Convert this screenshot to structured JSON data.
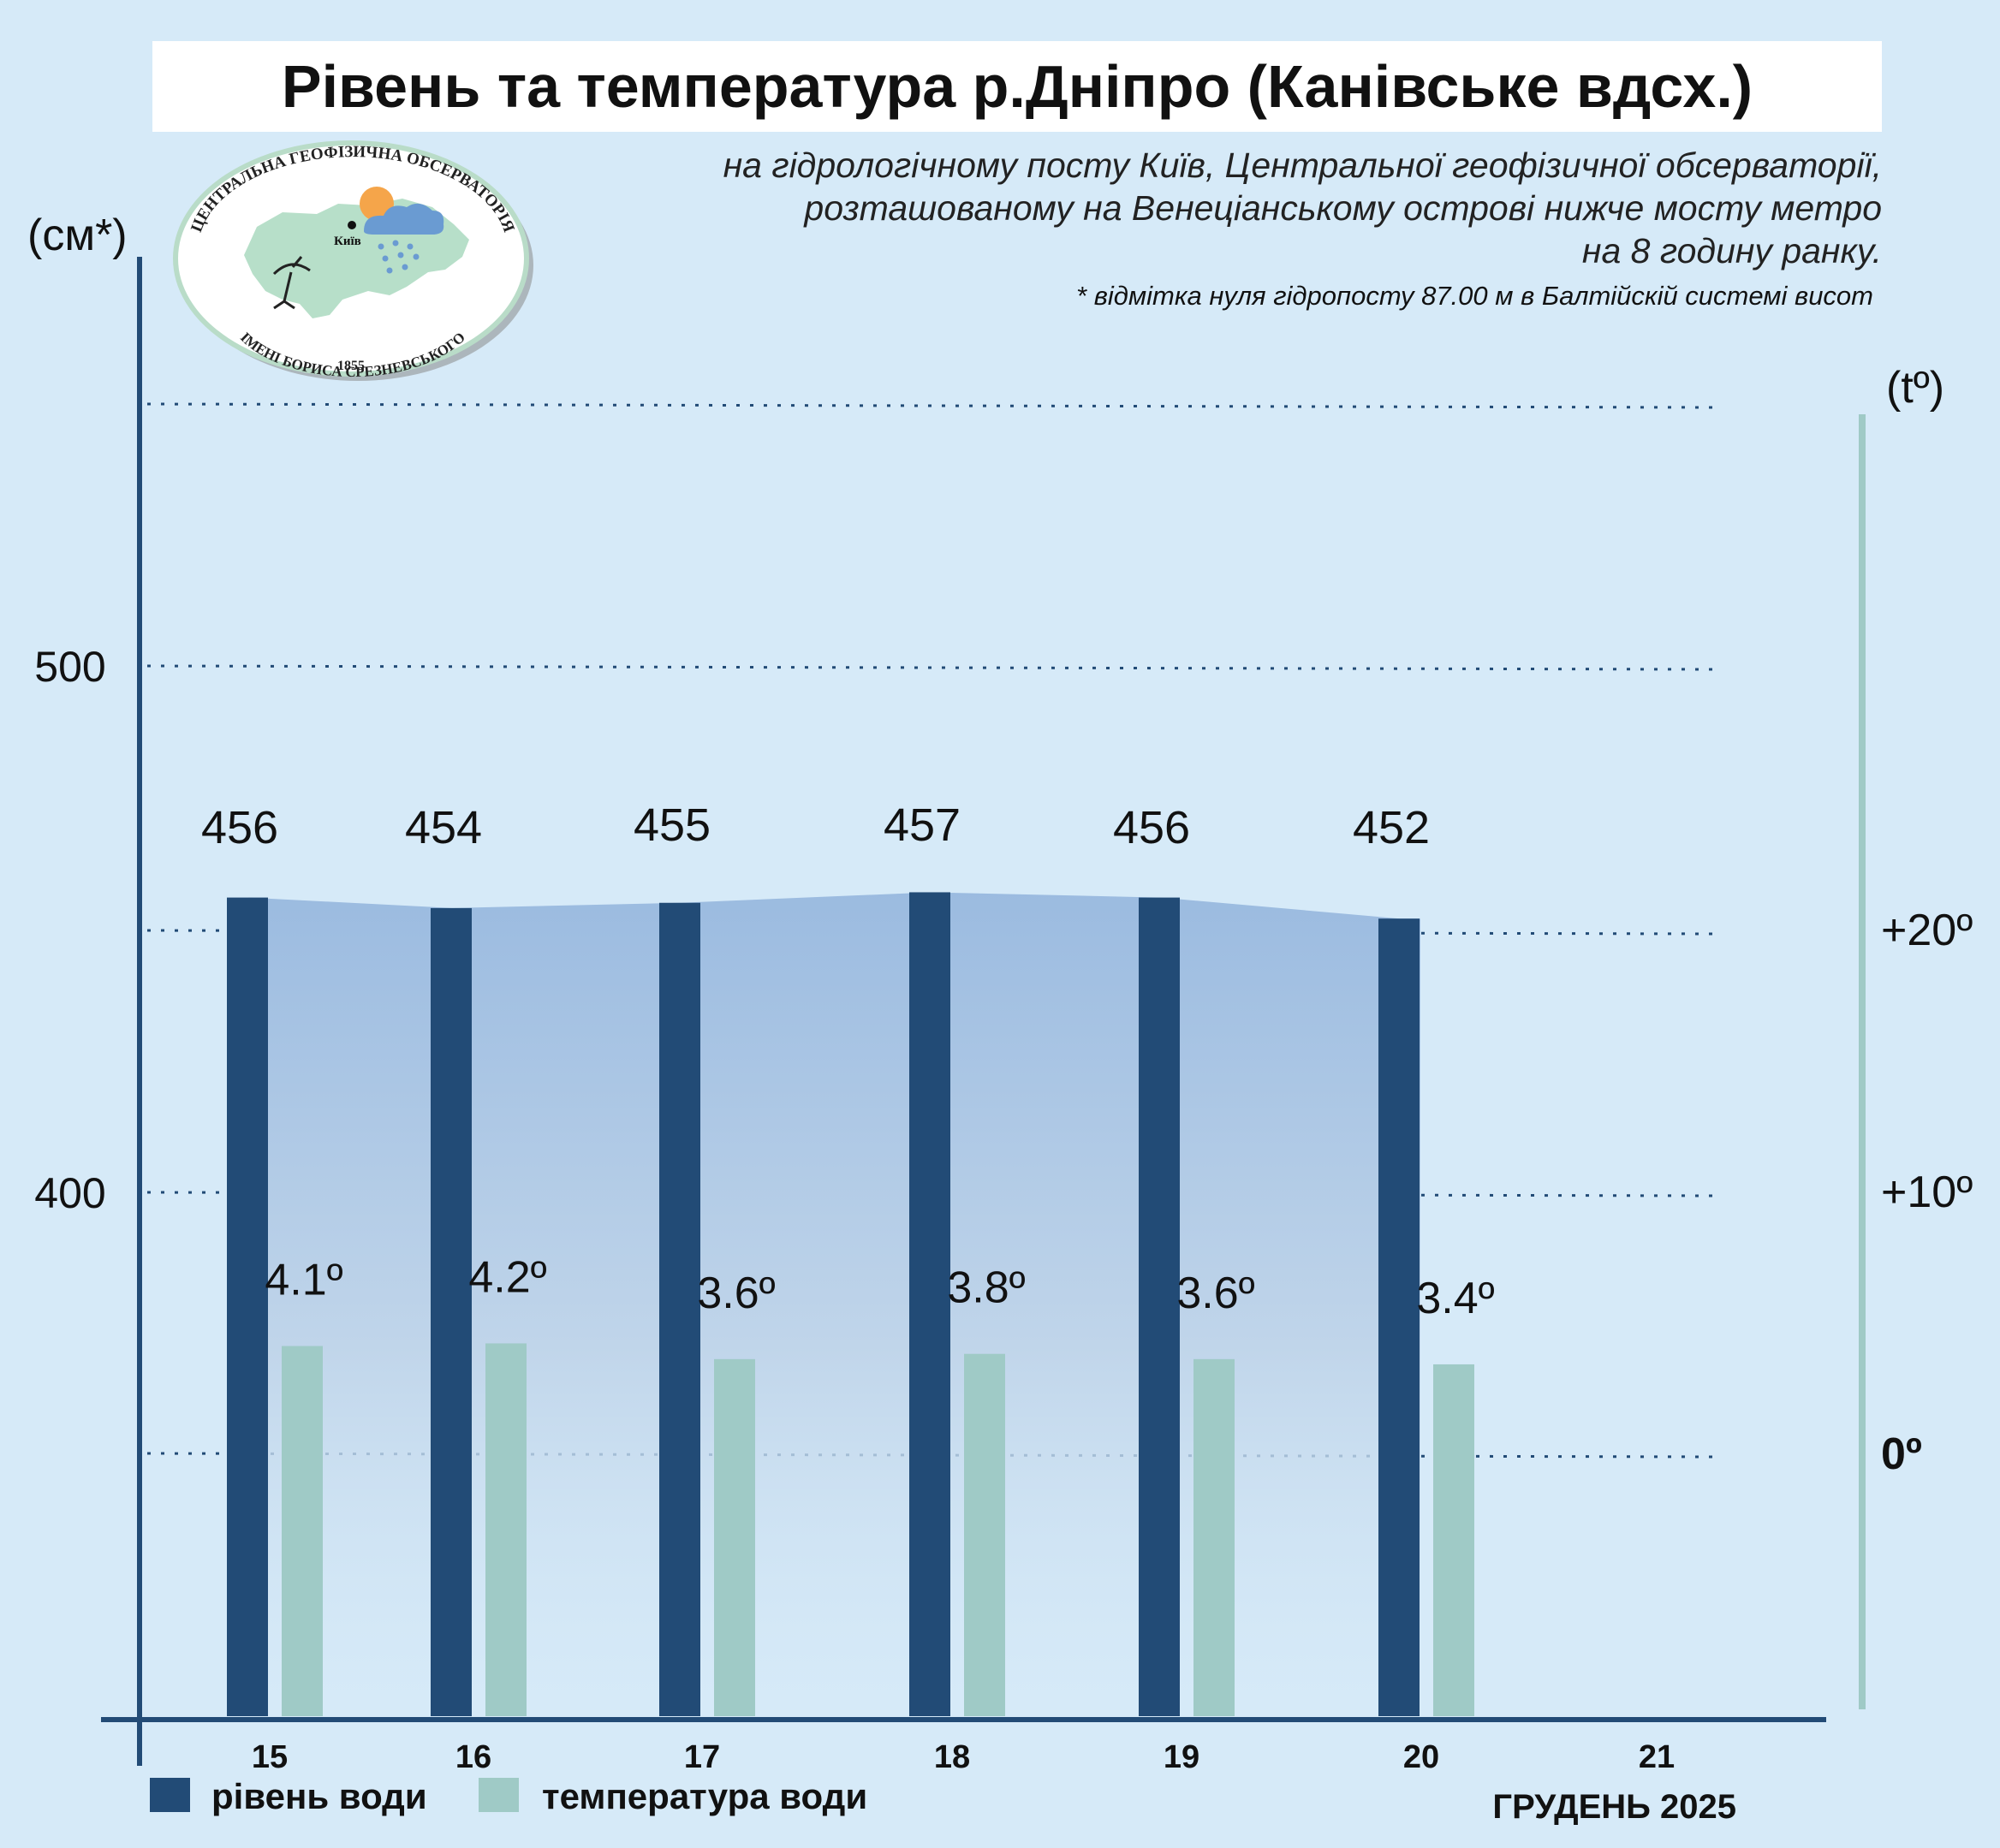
{
  "title": "Рівень та температура р.Дніпро (Канівське вдсх.)",
  "subtitle_lines": [
    "на гідрологічному посту Київ, Центральної геофізичної обсерваторії,",
    "розташованому на Венеціанському острові нижче мосту метро",
    "на 8 годину ранку."
  ],
  "footnote": "* відмітка нуля гідропосту 87.00 м в Балтійскій системі висот",
  "logo": {
    "arc_top": "ЦЕНТРАЛЬНА ГЕОФІЗИЧНА ОБСЕРВАТОРІЯ",
    "arc_bottom": "ІМЕНІ БОРИСА СРЕЗНЕВСЬКОГО",
    "year": "1855",
    "city": "Київ"
  },
  "colors": {
    "background": "#d6eaf8",
    "level_bar": "#224b76",
    "temp_bar": "#9fcac6",
    "area_top": "#9bbbe0",
    "axis": "#224b76",
    "right_axis": "#9fcac6"
  },
  "chart_data": {
    "type": "bar",
    "categories": [
      "15",
      "16",
      "17",
      "18",
      "19",
      "20",
      "21"
    ],
    "x_month_label": "ГРУДЕНЬ 2025",
    "left_axis": {
      "unit_label": "(см*)",
      "ticks": [
        {
          "value": 400,
          "label": "400"
        },
        {
          "value": 500,
          "label": "500"
        }
      ]
    },
    "right_axis": {
      "unit_label": "(tº)",
      "ticks": [
        {
          "value": 0,
          "label": "0º"
        },
        {
          "value": 10,
          "label": "+10º"
        },
        {
          "value": 20,
          "label": "+20º"
        }
      ]
    },
    "grid": "dotted",
    "series": [
      {
        "name": "рівень води",
        "axis": "left",
        "values": [
          456,
          454,
          455,
          457,
          456,
          452,
          null
        ],
        "labels": [
          "456",
          "454",
          "455",
          "457",
          "456",
          "452",
          ""
        ]
      },
      {
        "name": "температура води",
        "axis": "right",
        "values": [
          4.1,
          4.2,
          3.6,
          3.8,
          3.6,
          3.4,
          null
        ],
        "labels": [
          "4.1º",
          "4.2º",
          "3.6º",
          "3.8º",
          "3.6º",
          "3.4º",
          ""
        ]
      }
    ],
    "legend_position": "bottom-left"
  }
}
